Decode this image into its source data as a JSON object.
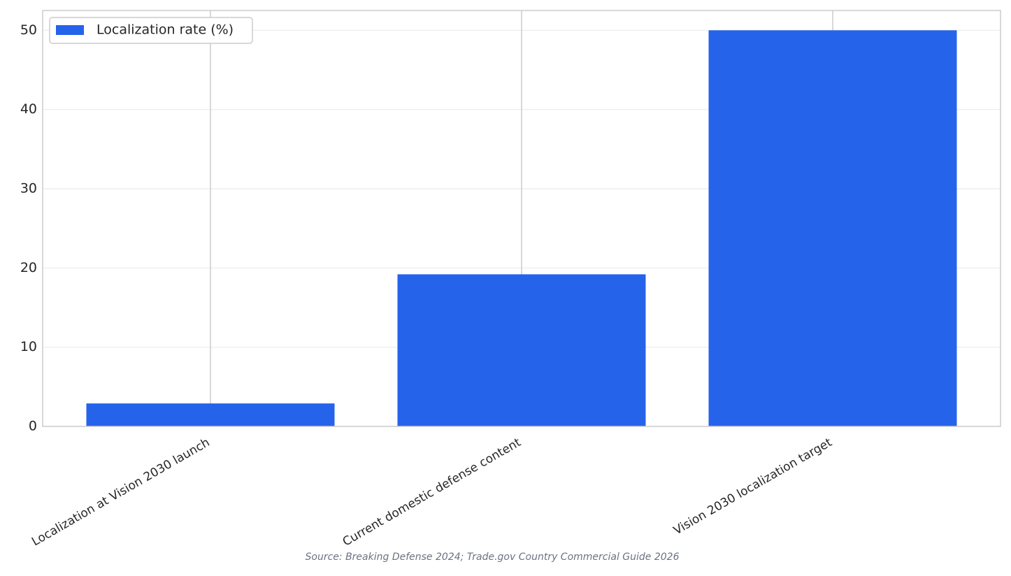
{
  "chart_data": {
    "type": "bar",
    "categories": [
      "Localization at Vision 2030 launch",
      "Current domestic defense content",
      "Vision 2030 localization target"
    ],
    "series": [
      {
        "name": "Localization rate (%)",
        "color": "#2563eb",
        "values": [
          2.9,
          19.2,
          50
        ]
      }
    ],
    "ylim": [
      0,
      52.5
    ],
    "yticks": [
      0,
      10,
      20,
      30,
      40,
      50
    ],
    "grid": true,
    "legend": "upper left",
    "source": "Source: Breaking Defense 2024; Trade.gov Country Commercial Guide 2026"
  }
}
